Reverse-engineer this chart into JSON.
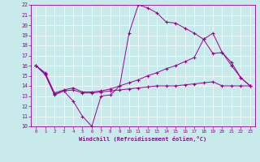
{
  "xlabel": "Windchill (Refroidissement éolien,°C)",
  "bg_color": "#c8eaea",
  "line_color": "#990099",
  "xlim": [
    -0.5,
    23.5
  ],
  "ylim": [
    10,
    22
  ],
  "xticks": [
    0,
    1,
    2,
    3,
    4,
    5,
    6,
    7,
    8,
    9,
    10,
    11,
    12,
    13,
    14,
    15,
    16,
    17,
    18,
    19,
    20,
    21,
    22,
    23
  ],
  "yticks": [
    10,
    11,
    12,
    13,
    14,
    15,
    16,
    17,
    18,
    19,
    20,
    21,
    22
  ],
  "s1": [
    16,
    15.1,
    13.1,
    13.5,
    12.5,
    11.0,
    10.0,
    13.0,
    13.1,
    14.0,
    19.2,
    22.0,
    21.7,
    21.2,
    20.3,
    20.2,
    19.7,
    19.2,
    18.6,
    19.2,
    17.3,
    16.0,
    14.8,
    14.0
  ],
  "s2": [
    16.0,
    15.2,
    13.2,
    13.5,
    13.6,
    13.3,
    13.3,
    13.4,
    13.5,
    13.6,
    13.7,
    13.8,
    13.9,
    14.0,
    14.0,
    14.0,
    14.1,
    14.2,
    14.3,
    14.4,
    14.0,
    14.0,
    14.0,
    14.0
  ],
  "s3": [
    16.0,
    15.3,
    13.3,
    13.6,
    13.8,
    13.4,
    13.4,
    13.5,
    13.7,
    14.0,
    14.3,
    14.6,
    15.0,
    15.3,
    15.7,
    16.0,
    16.4,
    16.8,
    18.6,
    17.2,
    17.3,
    16.3,
    14.8,
    14.0
  ]
}
